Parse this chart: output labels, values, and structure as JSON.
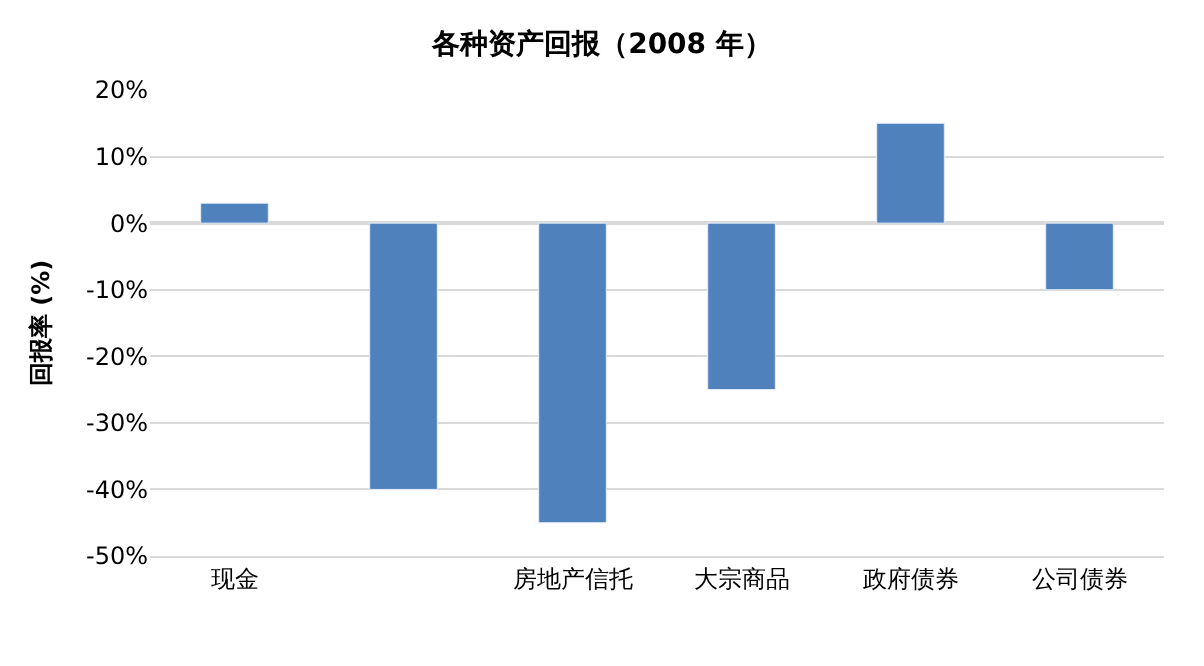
{
  "chart_data": {
    "type": "bar",
    "title": "各种资产回报（2008 年）",
    "ylabel": "回报率 (%)",
    "categories": [
      "现金",
      null,
      "房地产信托",
      "大宗商品",
      "政府债券",
      "公司债券"
    ],
    "values": [
      3,
      -40,
      -45,
      -25,
      15,
      -10
    ],
    "color": "#4f81bd",
    "ylim": [
      -50,
      20
    ],
    "yticks": [
      {
        "value": -50,
        "label": "-50%"
      },
      {
        "value": -40,
        "label": "-40%"
      },
      {
        "value": -30,
        "label": "-30%"
      },
      {
        "value": -20,
        "label": "-20%"
      },
      {
        "value": -10,
        "label": "-10%"
      },
      {
        "value": 0,
        "label": "0%"
      },
      {
        "value": 10,
        "label": "10%"
      },
      {
        "value": 20,
        "label": "20%"
      }
    ],
    "grid": "y",
    "legend": false
  }
}
